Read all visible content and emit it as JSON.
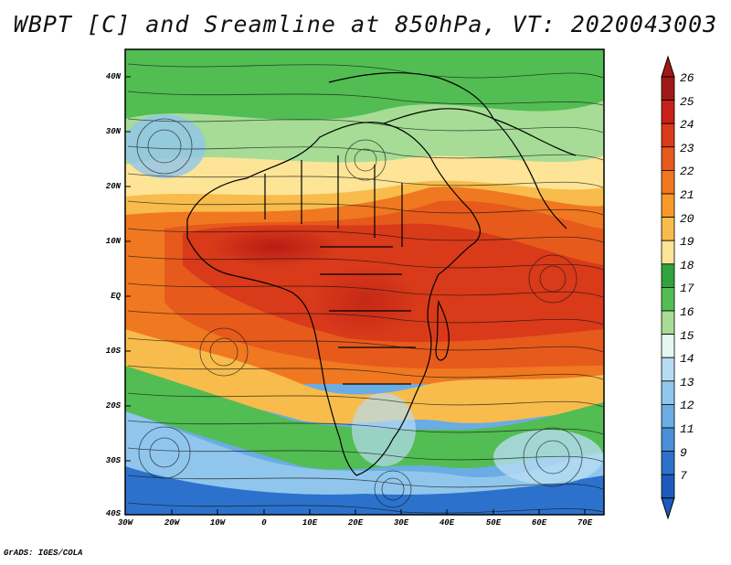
{
  "title": "WBPT [C] and Sreamline at 850hPa, VT: 2020043003",
  "footer": "GrADS: IGES/COLA",
  "map": {
    "lat_labels": [
      "40N",
      "30N",
      "20N",
      "10N",
      "EQ",
      "10S",
      "20S",
      "30S",
      "40S"
    ],
    "lon_labels": [
      "30W",
      "20W",
      "10W",
      "0",
      "10E",
      "20E",
      "30E",
      "40E",
      "50E",
      "60E",
      "70E"
    ],
    "field": "wet-bulb potential temperature",
    "overlay": "streamlines"
  },
  "colorbar": {
    "labels": [
      "26",
      "25",
      "24",
      "23",
      "22",
      "21",
      "20",
      "19",
      "18",
      "17",
      "16",
      "15",
      "14",
      "13",
      "12",
      "11",
      "9",
      "7"
    ],
    "colors": [
      "#a01818",
      "#c8201a",
      "#d83a1a",
      "#e65a1c",
      "#f07820",
      "#f59a28",
      "#f8bc4c",
      "#fde496",
      "#31a33b",
      "#52bd52",
      "#a6dc96",
      "#e6f6f0",
      "#b6dcf2",
      "#90c6ec",
      "#6aace4",
      "#4a8fd8",
      "#2c72cc",
      "#1e5abe"
    ]
  }
}
